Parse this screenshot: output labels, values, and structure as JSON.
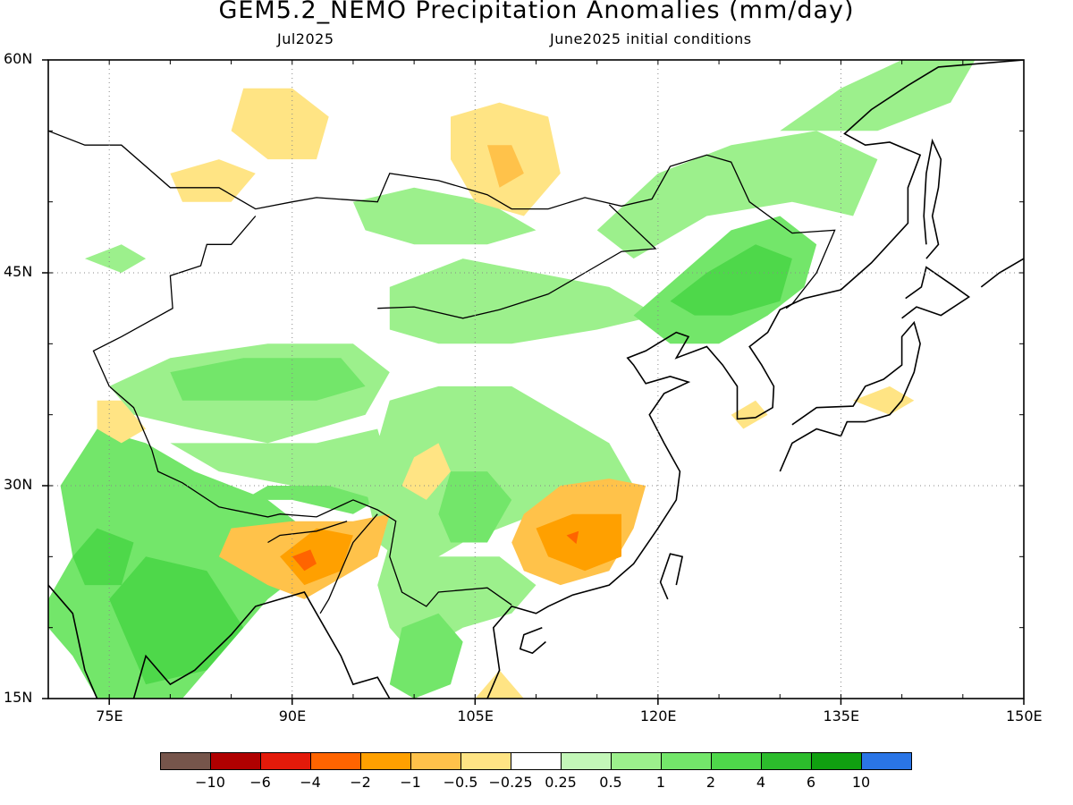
{
  "title": "GEM5.2_NEMO Precipitation Anomalies (mm/day)",
  "subtitle_left": "Jul2025",
  "subtitle_right": "June2025 initial conditions",
  "map": {
    "lon_range": [
      70,
      150
    ],
    "lat_range": [
      15,
      60
    ],
    "x_ticks": [
      {
        "lon": 75,
        "label": "75E"
      },
      {
        "lon": 90,
        "label": "90E"
      },
      {
        "lon": 105,
        "label": "105E"
      },
      {
        "lon": 120,
        "label": "120E"
      },
      {
        "lon": 135,
        "label": "135E"
      },
      {
        "lon": 150,
        "label": "150E"
      }
    ],
    "y_ticks": [
      {
        "lat": 15,
        "label": "15N"
      },
      {
        "lat": 30,
        "label": "30N"
      },
      {
        "lat": 45,
        "label": "45N"
      },
      {
        "lat": 60,
        "label": "60N"
      }
    ],
    "grid": true,
    "anomaly_regions": [
      {
        "name": "india-wet",
        "level": 2,
        "lonlat": [
          [
            70,
            22
          ],
          [
            72,
            25
          ],
          [
            71,
            30
          ],
          [
            74,
            34
          ],
          [
            78,
            33
          ],
          [
            82,
            31
          ],
          [
            88,
            29
          ],
          [
            91,
            27
          ],
          [
            91,
            24
          ],
          [
            88,
            22
          ],
          [
            86,
            20
          ],
          [
            84,
            18
          ],
          [
            81,
            15
          ],
          [
            74,
            15
          ],
          [
            72,
            18
          ],
          [
            70,
            20
          ]
        ]
      },
      {
        "name": "india-core-wet",
        "level": 3,
        "lonlat": [
          [
            75,
            22
          ],
          [
            78,
            25
          ],
          [
            83,
            24
          ],
          [
            86,
            20
          ],
          [
            83,
            17
          ],
          [
            78,
            16
          ]
        ]
      },
      {
        "name": "west-india-wet",
        "level": 3,
        "lonlat": [
          [
            72,
            25
          ],
          [
            74,
            27
          ],
          [
            77,
            26
          ],
          [
            76,
            23
          ],
          [
            73,
            23
          ]
        ]
      },
      {
        "name": "tarim-wet",
        "level": 1,
        "lonlat": [
          [
            75,
            37
          ],
          [
            80,
            39
          ],
          [
            88,
            40
          ],
          [
            95,
            40
          ],
          [
            98,
            38
          ],
          [
            96,
            35
          ],
          [
            92,
            34
          ],
          [
            88,
            33
          ],
          [
            82,
            34
          ],
          [
            77,
            35
          ]
        ]
      },
      {
        "name": "tarim-core-wet",
        "level": 2,
        "lonlat": [
          [
            80,
            38
          ],
          [
            86,
            39
          ],
          [
            94,
            39
          ],
          [
            96,
            37
          ],
          [
            92,
            36
          ],
          [
            86,
            36
          ],
          [
            81,
            36
          ]
        ]
      },
      {
        "name": "tibet-wet",
        "level": 1,
        "lonlat": [
          [
            80,
            33
          ],
          [
            84,
            31
          ],
          [
            90,
            30
          ],
          [
            96,
            29
          ],
          [
            98,
            31
          ],
          [
            97,
            34
          ],
          [
            92,
            33
          ],
          [
            86,
            33
          ]
        ]
      },
      {
        "name": "himalaya-wet",
        "level": 2,
        "lonlat": [
          [
            86,
            29
          ],
          [
            90,
            29
          ],
          [
            95,
            28
          ],
          [
            97,
            29
          ],
          [
            93,
            30
          ],
          [
            88,
            30
          ]
        ]
      },
      {
        "name": "central-asia-wet",
        "level": 1,
        "lonlat": [
          [
            98,
            44
          ],
          [
            104,
            46
          ],
          [
            110,
            45
          ],
          [
            116,
            44
          ],
          [
            120,
            42
          ],
          [
            115,
            41
          ],
          [
            108,
            40
          ],
          [
            102,
            40
          ],
          [
            98,
            41
          ]
        ]
      },
      {
        "name": "china-central-wet",
        "level": 1,
        "lonlat": [
          [
            98,
            36
          ],
          [
            102,
            37
          ],
          [
            108,
            37
          ],
          [
            112,
            35
          ],
          [
            116,
            33
          ],
          [
            118,
            30
          ],
          [
            115,
            29
          ],
          [
            110,
            28
          ],
          [
            104,
            26
          ],
          [
            100,
            24
          ],
          [
            97,
            26
          ],
          [
            96,
            30
          ],
          [
            97,
            33
          ]
        ]
      },
      {
        "name": "sichuan-wet",
        "level": 2,
        "lonlat": [
          [
            103,
            31
          ],
          [
            106,
            31
          ],
          [
            108,
            29
          ],
          [
            106,
            26
          ],
          [
            103,
            26
          ],
          [
            102,
            28
          ]
        ]
      },
      {
        "name": "yunnan-wet",
        "level": 1,
        "lonlat": [
          [
            98,
            26
          ],
          [
            102,
            25
          ],
          [
            107,
            25
          ],
          [
            110,
            23
          ],
          [
            108,
            21
          ],
          [
            104,
            20
          ],
          [
            100,
            18
          ],
          [
            98,
            20
          ],
          [
            97,
            23
          ]
        ]
      },
      {
        "name": "indochina-wet",
        "level": 2,
        "lonlat": [
          [
            99,
            20
          ],
          [
            102,
            21
          ],
          [
            104,
            19
          ],
          [
            103,
            16
          ],
          [
            100,
            15
          ],
          [
            98,
            16
          ]
        ]
      },
      {
        "name": "manchuria-wet",
        "level": 2,
        "lonlat": [
          [
            118,
            42
          ],
          [
            122,
            45
          ],
          [
            126,
            48
          ],
          [
            130,
            49
          ],
          [
            133,
            47
          ],
          [
            132,
            44
          ],
          [
            129,
            42
          ],
          [
            125,
            40
          ],
          [
            121,
            40
          ]
        ]
      },
      {
        "name": "manchuria-core-wet",
        "level": 3,
        "lonlat": [
          [
            121,
            43
          ],
          [
            124,
            45
          ],
          [
            128,
            47
          ],
          [
            131,
            46
          ],
          [
            130,
            43
          ],
          [
            126,
            42
          ],
          [
            123,
            42
          ]
        ]
      },
      {
        "name": "northeast-wet",
        "level": 1,
        "lonlat": [
          [
            115,
            48
          ],
          [
            120,
            52
          ],
          [
            126,
            54
          ],
          [
            133,
            55
          ],
          [
            138,
            53
          ],
          [
            136,
            49
          ],
          [
            131,
            50
          ],
          [
            124,
            49
          ],
          [
            118,
            46
          ]
        ]
      },
      {
        "name": "far-east-wet",
        "level": 1,
        "lonlat": [
          [
            130,
            55
          ],
          [
            135,
            58
          ],
          [
            140,
            60
          ],
          [
            146,
            60
          ],
          [
            144,
            57
          ],
          [
            138,
            55
          ]
        ]
      },
      {
        "name": "mongolia-wet",
        "level": 1,
        "lonlat": [
          [
            95,
            50
          ],
          [
            100,
            51
          ],
          [
            106,
            50
          ],
          [
            110,
            48
          ],
          [
            106,
            47
          ],
          [
            100,
            47
          ],
          [
            96,
            48
          ]
        ]
      },
      {
        "name": "kazakh-wet",
        "level": 1,
        "lonlat": [
          [
            73,
            46
          ],
          [
            76,
            47
          ],
          [
            78,
            46
          ],
          [
            76,
            45
          ]
        ]
      },
      {
        "name": "north-mongolia-dry",
        "level": -1,
        "lonlat": [
          [
            86,
            58
          ],
          [
            90,
            58
          ],
          [
            93,
            56
          ],
          [
            92,
            53
          ],
          [
            88,
            53
          ],
          [
            85,
            55
          ]
        ]
      },
      {
        "name": "baikal-dry",
        "level": -1,
        "lonlat": [
          [
            103,
            56
          ],
          [
            107,
            57
          ],
          [
            111,
            56
          ],
          [
            112,
            52
          ],
          [
            109,
            49
          ],
          [
            105,
            50
          ],
          [
            103,
            53
          ]
        ]
      },
      {
        "name": "baikal-core-dry",
        "level": -2,
        "lonlat": [
          [
            106,
            54
          ],
          [
            108,
            54
          ],
          [
            109,
            52
          ],
          [
            107,
            51
          ]
        ]
      },
      {
        "name": "siberia-dry",
        "level": -1,
        "lonlat": [
          [
            80,
            52
          ],
          [
            84,
            53
          ],
          [
            87,
            52
          ],
          [
            85,
            50
          ],
          [
            81,
            50
          ]
        ]
      },
      {
        "name": "tibet-east-dry",
        "level": -1,
        "lonlat": [
          [
            100,
            32
          ],
          [
            102,
            33
          ],
          [
            103,
            31
          ],
          [
            101,
            29
          ],
          [
            99,
            30
          ]
        ]
      },
      {
        "name": "bangladesh-dry",
        "level": -2,
        "lonlat": [
          [
            85,
            27
          ],
          [
            90,
            27.5
          ],
          [
            95,
            27.5
          ],
          [
            98,
            28
          ],
          [
            97,
            25
          ],
          [
            93,
            23
          ],
          [
            91,
            22
          ],
          [
            88,
            23
          ],
          [
            86,
            24
          ],
          [
            84,
            25
          ]
        ]
      },
      {
        "name": "bangladesh-core-dry",
        "level": -3,
        "lonlat": [
          [
            89,
            25
          ],
          [
            92,
            27
          ],
          [
            95,
            26.5
          ],
          [
            94,
            24
          ],
          [
            91,
            23
          ]
        ]
      },
      {
        "name": "bangladesh-peak-dry",
        "level": -4,
        "lonlat": [
          [
            90,
            25
          ],
          [
            91.5,
            25.5
          ],
          [
            92,
            24.5
          ],
          [
            91,
            24
          ]
        ]
      },
      {
        "name": "south-china-dry",
        "level": -2,
        "lonlat": [
          [
            109,
            28
          ],
          [
            112,
            30
          ],
          [
            116,
            30.5
          ],
          [
            119,
            30
          ],
          [
            118,
            27
          ],
          [
            116,
            24
          ],
          [
            112,
            23
          ],
          [
            109,
            24
          ],
          [
            108,
            26
          ]
        ]
      },
      {
        "name": "south-china-core-dry",
        "level": -3,
        "lonlat": [
          [
            110,
            27
          ],
          [
            113,
            28
          ],
          [
            117,
            28
          ],
          [
            117,
            25
          ],
          [
            114,
            24
          ],
          [
            111,
            25
          ]
        ]
      },
      {
        "name": "south-china-peak-dry",
        "level": -4,
        "lonlat": [
          [
            112.5,
            26.5
          ],
          [
            113.5,
            26.8
          ],
          [
            113.3,
            25.9
          ]
        ]
      },
      {
        "name": "pakistan-dry",
        "level": -1,
        "lonlat": [
          [
            74,
            36
          ],
          [
            76,
            36
          ],
          [
            78,
            34
          ],
          [
            76,
            33
          ],
          [
            74,
            34
          ]
        ]
      },
      {
        "name": "japan-dry",
        "level": -1,
        "lonlat": [
          [
            136,
            36
          ],
          [
            139,
            37
          ],
          [
            141,
            36
          ],
          [
            139,
            35
          ]
        ]
      },
      {
        "name": "korea-dry",
        "level": -1,
        "lonlat": [
          [
            126,
            35
          ],
          [
            128,
            36
          ],
          [
            129,
            35
          ],
          [
            127,
            34
          ]
        ]
      },
      {
        "name": "indochina-dry",
        "level": -1,
        "lonlat": [
          [
            105,
            15
          ],
          [
            107,
            17
          ],
          [
            109,
            15
          ]
        ]
      }
    ]
  },
  "legend": {
    "levels": [
      {
        "color": "#76554b",
        "label": "−10"
      },
      {
        "color": "#b00000",
        "label": "−6"
      },
      {
        "color": "#e31a0a",
        "label": "−4"
      },
      {
        "color": "#ff6400",
        "label": "−2"
      },
      {
        "color": "#ffa000",
        "label": "−1"
      },
      {
        "color": "#ffc24a",
        "label": "−0.5"
      },
      {
        "color": "#ffe484",
        "label": "−0.25"
      },
      {
        "color": "#ffffff",
        "label": "0.25"
      },
      {
        "color": "#c3f7b8",
        "label": "0.5"
      },
      {
        "color": "#9cf08c",
        "label": "1"
      },
      {
        "color": "#73e66a",
        "label": "2"
      },
      {
        "color": "#4ed84a",
        "label": "4"
      },
      {
        "color": "#2cbc2c",
        "label": "6"
      },
      {
        "color": "#10a010",
        "label": "10"
      },
      {
        "color": "#2a75e6",
        "label": ""
      }
    ]
  }
}
